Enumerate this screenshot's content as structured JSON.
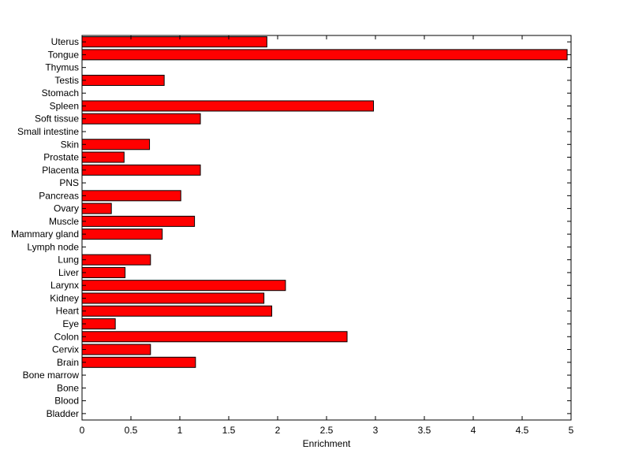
{
  "chart_data": {
    "type": "bar",
    "orientation": "horizontal",
    "title": "",
    "xlabel": "Enrichment",
    "ylabel": "",
    "xlim": [
      0,
      5
    ],
    "x_ticks": [
      0,
      0.5,
      1,
      1.5,
      2,
      2.5,
      3,
      3.5,
      4,
      4.5,
      5
    ],
    "x_tick_labels": [
      "0",
      "0.5",
      "1",
      "1.5",
      "2",
      "2.5",
      "3",
      "3.5",
      "4",
      "4.5",
      "5"
    ],
    "grid": false,
    "legend": false,
    "bar_color": "#ff0000",
    "bar_edge_color": "#000000",
    "categories": [
      "Bladder",
      "Blood",
      "Bone",
      "Bone marrow",
      "Brain",
      "Cervix",
      "Colon",
      "Eye",
      "Heart",
      "Kidney",
      "Larynx",
      "Liver",
      "Lung",
      "Lymph node",
      "Mammary gland",
      "Muscle",
      "Ovary",
      "Pancreas",
      "PNS",
      "Placenta",
      "Prostate",
      "Skin",
      "Small intestine",
      "Soft tissue",
      "Spleen",
      "Stomach",
      "Testis",
      "Thymus",
      "Tongue",
      "Uterus"
    ],
    "values": [
      0,
      0,
      0,
      0,
      1.16,
      0.7,
      2.71,
      0.34,
      1.94,
      1.86,
      2.08,
      0.44,
      0.7,
      0,
      0.82,
      1.15,
      0.3,
      1.01,
      0,
      1.21,
      0.43,
      0.69,
      0,
      1.21,
      2.98,
      0,
      0.84,
      0,
      4.96,
      1.89
    ]
  }
}
